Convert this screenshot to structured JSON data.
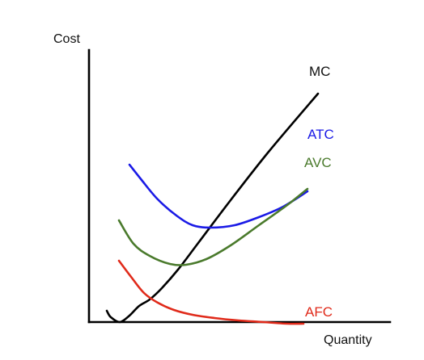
{
  "chart_data": {
    "type": "line",
    "title": "",
    "ylabel": "Cost",
    "xlabel": "Quantity",
    "grid": false,
    "x_ticks": false,
    "y_ticks": false,
    "series": [
      {
        "name": "MC",
        "color": "#000000",
        "points": [
          [
            22,
            98
          ],
          [
            27,
            106
          ],
          [
            38,
            112
          ],
          [
            50,
            104
          ],
          [
            62,
            92
          ],
          [
            75,
            84
          ],
          [
            90,
            70
          ],
          [
            110,
            47
          ],
          [
            135,
            14
          ],
          [
            175,
            -39
          ],
          [
            222,
            -99
          ],
          [
            283,
            -171
          ]
        ]
      },
      {
        "name": "ATC",
        "color": "#1a1ae6",
        "points": [
          [
            50,
            -83
          ],
          [
            65,
            -64
          ],
          [
            85,
            -40
          ],
          [
            108,
            -20
          ],
          [
            128,
            -8
          ],
          [
            150,
            -5
          ],
          [
            180,
            -8
          ],
          [
            210,
            -18
          ],
          [
            240,
            -31
          ],
          [
            270,
            -50
          ]
        ]
      },
      {
        "name": "AVC",
        "color": "#4a7a2c",
        "points": [
          [
            37,
            -14
          ],
          [
            55,
            15
          ],
          [
            75,
            30
          ],
          [
            100,
            40
          ],
          [
            120,
            41
          ],
          [
            145,
            34
          ],
          [
            175,
            17
          ],
          [
            210,
            -8
          ],
          [
            245,
            -33
          ],
          [
            270,
            -53
          ]
        ]
      },
      {
        "name": "AFC",
        "color": "#e02a1a",
        "points": [
          [
            37,
            36
          ],
          [
            52,
            56
          ],
          [
            68,
            76
          ],
          [
            85,
            88
          ],
          [
            105,
            97
          ],
          [
            128,
            103
          ],
          [
            155,
            107
          ],
          [
            185,
            110
          ],
          [
            215,
            112
          ],
          [
            245,
            114
          ],
          [
            265,
            114
          ]
        ]
      }
    ]
  }
}
